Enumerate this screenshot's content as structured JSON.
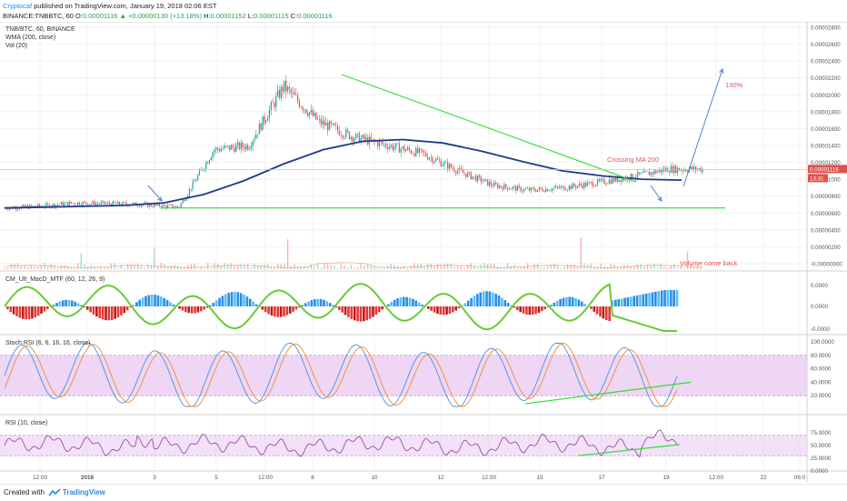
{
  "header": {
    "author": "Cryptocaf",
    "published_text": "published on TradingView.com, January 19, 2018 02:06 EST",
    "symbol_text": "BINANCE:TNBBTC, 60",
    "o_label": "O:",
    "o_value": "0.00001116",
    "change": "▲ +0.00000130 (+13.18%)",
    "h_label": "H:",
    "h_value": "0.00001152",
    "l_label": "L:",
    "l_value": "0.00001115",
    "c_label": "C:",
    "c_value": "0.00001116"
  },
  "footer": {
    "created_with": "Created with",
    "brand": "TradingView"
  },
  "colors": {
    "up": "#26a69a",
    "down": "#ef5350",
    "wma": "#1e3a8a",
    "trend": "#33dd33",
    "arrow": "#5a7fc7",
    "price_badge": "#e0514c",
    "rsi_band": "#e8c8f0",
    "rsi_line": "#8b3fa0"
  },
  "chart_data": [
    {
      "type": "line",
      "panel": "price",
      "title": "TNB/BTC, 60, BINANCE",
      "legend": [
        "WMA (200, close)",
        "Vol (20)"
      ],
      "x_ticks": [
        "12:00",
        "2018",
        "3",
        "5",
        "12:00",
        "8",
        "10",
        "12",
        "12:00",
        "15",
        "17",
        "19",
        "12:00",
        "22",
        "06:0"
      ],
      "y_ticks": [
        "0.00002800",
        "0.00002600",
        "0.00002400",
        "0.00002200",
        "0.00002000",
        "0.00001800",
        "0.00001600",
        "0.00001400",
        "0.00001200",
        "0.00001000",
        "0.00000800",
        "0.00000600",
        "0.00000400",
        "0.00000200",
        "-0.00000000"
      ],
      "ylim": [
        0,
        2.8e-05
      ],
      "price_x": [
        0,
        5,
        10,
        15,
        20,
        25,
        30,
        35,
        40,
        45,
        50,
        55,
        60,
        65,
        70,
        75,
        80,
        85,
        90,
        95,
        100
      ],
      "price_y": [
        6.6e-06,
        6.8e-06,
        7.2e-06,
        7.1e-06,
        7e-06,
        6.7e-06,
        1.35e-05,
        1.4e-05,
        2.1e-05,
        1.68e-05,
        1.5e-05,
        1.4e-05,
        1.3e-05,
        1.1e-05,
        9.3e-06,
        8.7e-06,
        9e-06,
        9.6e-06,
        1.03e-05,
        1.12e-05,
        1.12e-05
      ],
      "wma_y": [
        6.6e-06,
        6.7e-06,
        6.8e-06,
        6.9e-06,
        7.2e-06,
        8.2e-06,
        9.8e-06,
        1.18e-05,
        1.35e-05,
        1.45e-05,
        1.47e-05,
        1.43e-05,
        1.33e-05,
        1.21e-05,
        1.1e-05,
        1.04e-05,
        1e-05,
        9.9e-06
      ],
      "current_price_label": "0.00001116",
      "countdown_label": "13:31",
      "annotations": {
        "crossing": "Crossing MA 200",
        "target": "130%",
        "volume": "Volume come back"
      }
    },
    {
      "type": "bar",
      "panel": "macd",
      "title": "CM_Ult_MacD_MTF (60, 12, 26, 9)",
      "y_ticks": [
        "0.0000",
        "0.0000",
        "-0.0000"
      ]
    },
    {
      "type": "line",
      "panel": "stoch_rsi",
      "title": "Stoch RSI (6, 6, 16, 16, close)",
      "y_ticks": [
        "100.0000",
        "80.0000",
        "60.0000",
        "40.0000",
        "20.0000"
      ],
      "ylim": [
        0,
        100
      ],
      "band": [
        20,
        80
      ]
    },
    {
      "type": "line",
      "panel": "rsi",
      "title": "RSI (10, close)",
      "y_ticks": [
        "75.0000",
        "50.0000",
        "25.0000",
        "0.0000"
      ],
      "ylim": [
        0,
        100
      ],
      "band": [
        30,
        70
      ]
    }
  ]
}
